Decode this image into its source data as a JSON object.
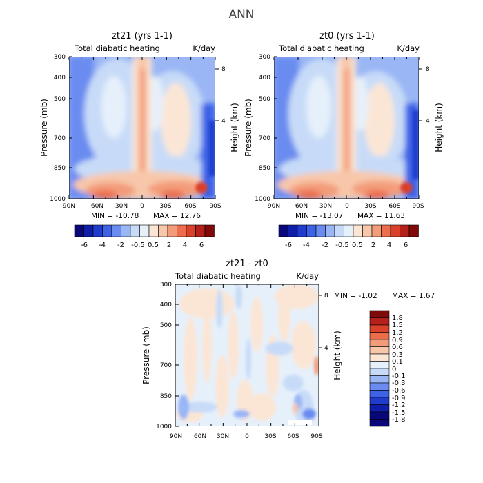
{
  "figure": {
    "title": "ANN"
  },
  "chart_data": [
    {
      "type": "heatmap",
      "title": "zt21 (yrs 1-1)",
      "subtitle_left": "Total diabatic heating",
      "subtitle_right": "K/day",
      "xlabel": "",
      "ylabel": "Pressure (mb)",
      "ylabel_right": "Height (km)",
      "x_ticks": [
        "90N",
        "60N",
        "30N",
        "0",
        "30S",
        "60S",
        "90S"
      ],
      "y_ticks": [
        "300",
        "400",
        "500",
        "700",
        "850",
        "1000"
      ],
      "y_right_ticks": [
        "8",
        "4"
      ],
      "ylim": [
        1000,
        300
      ],
      "y_scale": "log",
      "min_label": "MIN = -10.78",
      "max_label": "MAX = 12.76",
      "min": -10.78,
      "max": 12.76,
      "colorbar": {
        "orientation": "horizontal",
        "labels": [
          "-6",
          "-4",
          "-2",
          "-0.5",
          "0.5",
          "2",
          "4",
          "6"
        ]
      }
    },
    {
      "type": "heatmap",
      "title": "zt0 (yrs 1-1)",
      "subtitle_left": "Total diabatic heating",
      "subtitle_right": "K/day",
      "xlabel": "",
      "ylabel": "Pressure (mb)",
      "ylabel_right": "Height (km)",
      "x_ticks": [
        "90N",
        "60N",
        "30N",
        "0",
        "30S",
        "60S",
        "90S"
      ],
      "y_ticks": [
        "300",
        "400",
        "500",
        "700",
        "850",
        "1000"
      ],
      "y_right_ticks": [
        "8",
        "4"
      ],
      "ylim": [
        1000,
        300
      ],
      "y_scale": "log",
      "min_label": "MIN = -13.07",
      "max_label": "MAX = 11.63",
      "min": -13.07,
      "max": 11.63,
      "colorbar": {
        "orientation": "horizontal",
        "labels": [
          "-6",
          "-4",
          "-2",
          "-0.5",
          "0.5",
          "2",
          "4",
          "6"
        ]
      }
    },
    {
      "type": "heatmap",
      "title": "zt21 - zt0",
      "subtitle_left": "Total diabatic heating",
      "subtitle_right": "K/day",
      "xlabel": "",
      "ylabel": "Pressure (mb)",
      "ylabel_right": "Height (km)",
      "x_ticks": [
        "90N",
        "60N",
        "30N",
        "0",
        "30S",
        "60S",
        "90S"
      ],
      "y_ticks": [
        "300",
        "400",
        "500",
        "700",
        "850",
        "1000"
      ],
      "y_right_ticks": [
        "8",
        "4"
      ],
      "ylim": [
        1000,
        300
      ],
      "y_scale": "log",
      "min_label": "MIN = -1.02",
      "max_label": "MAX = 1.67",
      "min": -1.02,
      "max": 1.67,
      "colorbar": {
        "orientation": "vertical",
        "labels": [
          "1.8",
          "1.5",
          "1.2",
          "0.9",
          "0.6",
          "0.3",
          "0.1",
          "0",
          "-0.1",
          "-0.3",
          "-0.6",
          "-0.9",
          "-1.2",
          "-1.5",
          "-1.8"
        ]
      }
    }
  ],
  "palette": {
    "diverging": [
      "#08087a",
      "#0f1ea8",
      "#1f3ccd",
      "#3d62e6",
      "#6a8cf0",
      "#9ab6f5",
      "#c7dbf8",
      "#e6f0fb",
      "#fbe6d6",
      "#f8c7aa",
      "#f39c7a",
      "#ec6c4c",
      "#d9412a",
      "#b5211a",
      "#800a0a"
    ]
  }
}
